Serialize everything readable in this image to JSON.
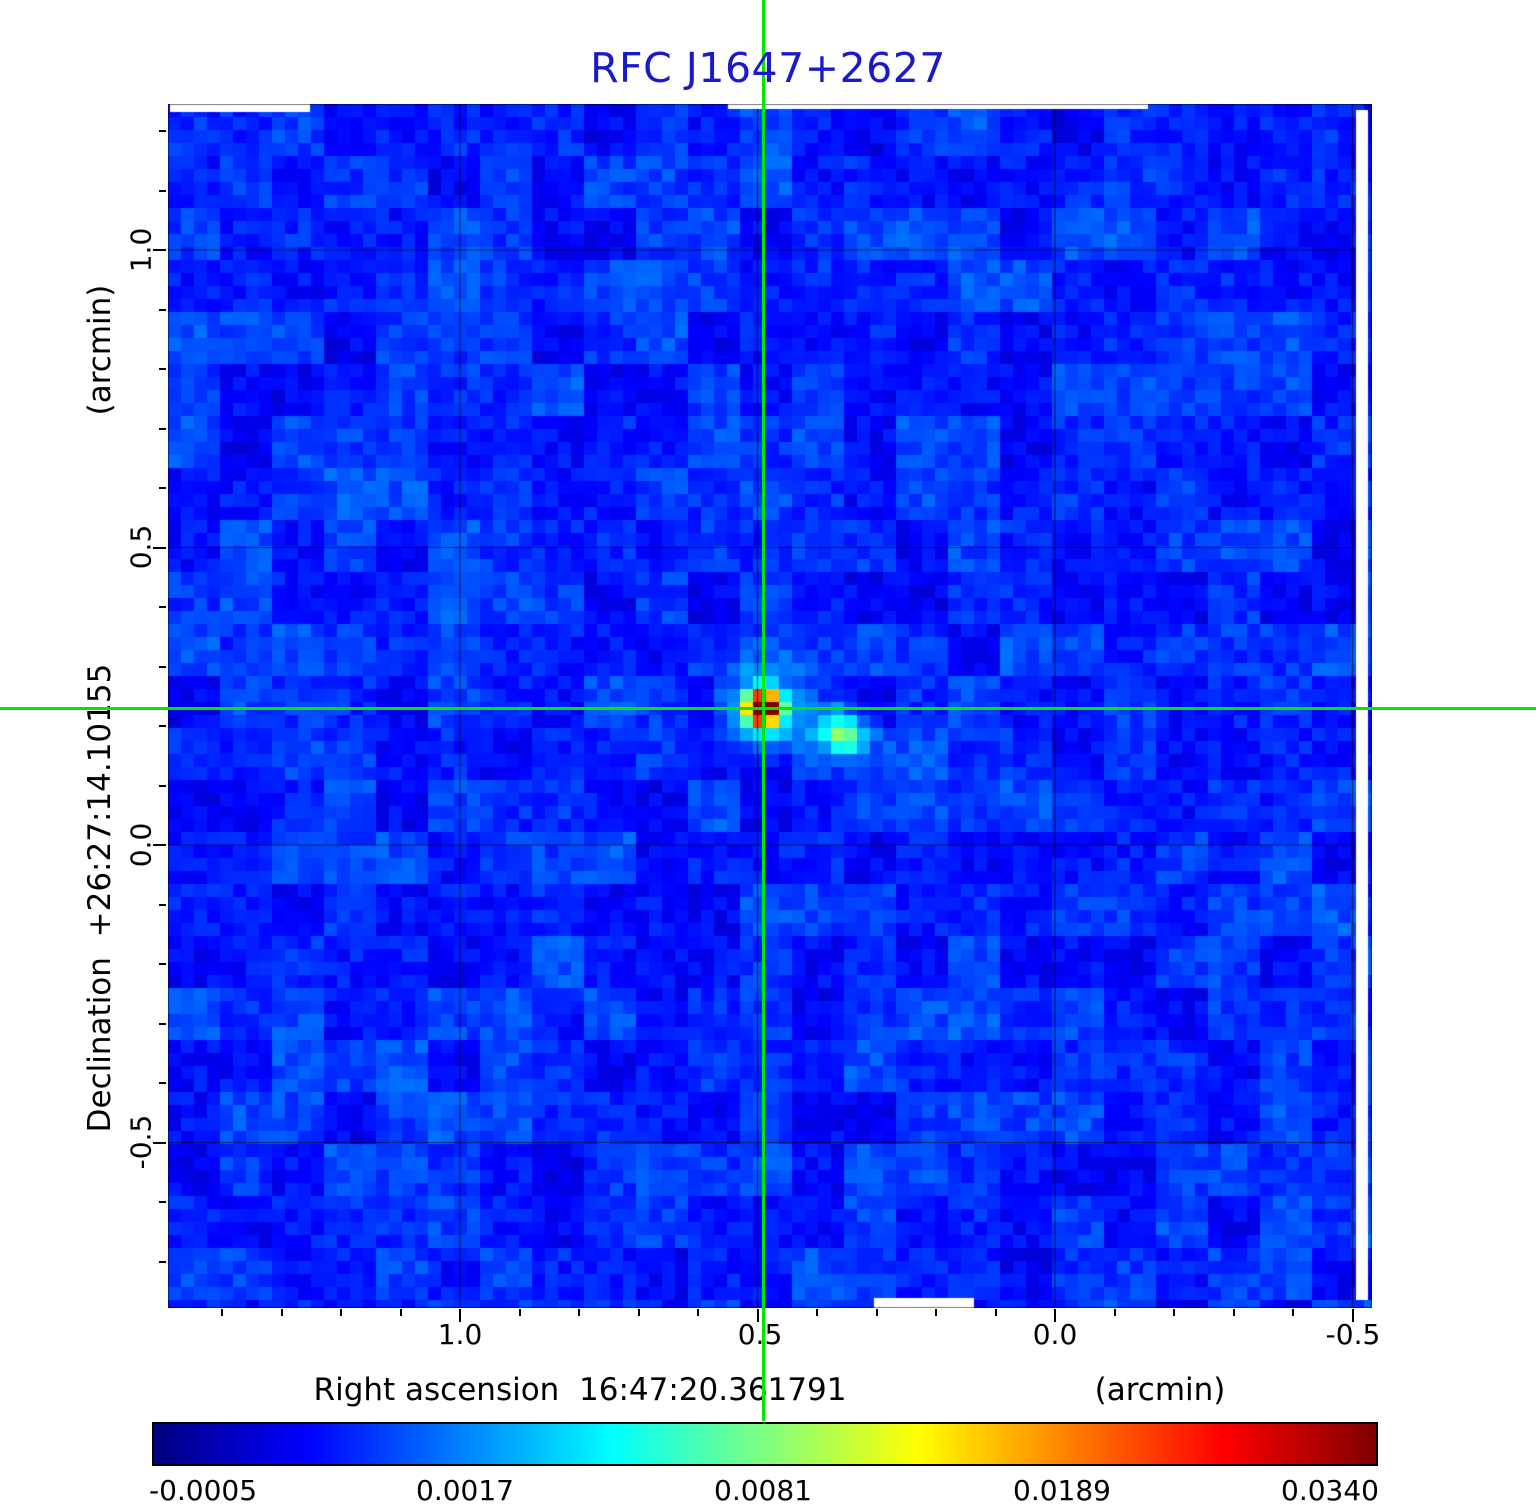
{
  "title": "RFC J1647+2627",
  "colors": {
    "title": "#1a1acd",
    "crosshair": "#00e800",
    "axis_text": "#000000",
    "grid_line": "rgba(0,0,0,0.6)"
  },
  "axes": {
    "y_unit": "(arcmin)",
    "y_title": "Declination  +26:27:14.10155",
    "y_ticks": [
      "1.0",
      "0.5",
      "0.0",
      "-0.5"
    ],
    "x_title": "Right ascension  16:47:20.361791",
    "x_unit": "(arcmin)",
    "x_ticks": [
      "1.0",
      "0.5",
      "0.0",
      "-0.5"
    ]
  },
  "colorbar": {
    "tick_labels": [
      "-0.0005",
      "0.0017",
      "0.0081",
      "0.0189",
      "0.0340"
    ]
  },
  "chart_data": {
    "type": "heatmap",
    "title": "RFC J1647+2627",
    "xlabel": "Right ascension 16:47:20.361791 (arcmin)",
    "ylabel": "Declination +26:27:14.10155 (arcmin)",
    "x_ticks_arcmin": [
      1.0,
      0.5,
      0.0,
      -0.5
    ],
    "y_ticks_arcmin": [
      1.0,
      0.5,
      0.0,
      -0.5
    ],
    "x_range_arcmin": [
      1.49,
      -0.53
    ],
    "y_range_arcmin": [
      -0.78,
      1.25
    ],
    "grid": true,
    "colormap": "jet",
    "colorbar_ticks": [
      -0.0005,
      0.0017,
      0.0081,
      0.0189,
      0.034
    ],
    "background_level": -0.0005,
    "peak_value": 0.034,
    "source": {
      "x_arcmin": 0.49,
      "y_arcmin": 0.23,
      "peak": 0.034
    },
    "secondary_blob": {
      "x_arcmin": 0.36,
      "y_arcmin": 0.19,
      "peak": 0.008
    },
    "crosshair_arcmin": {
      "x": 0.49,
      "y": 0.23
    }
  }
}
